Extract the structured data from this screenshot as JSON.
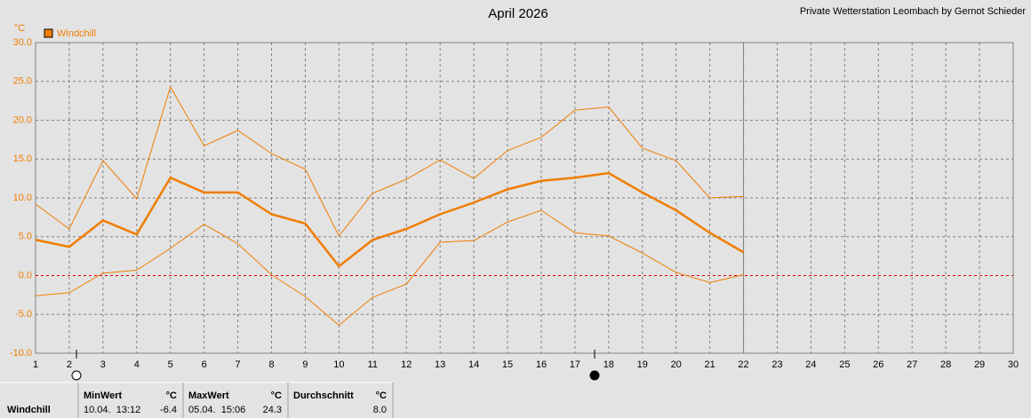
{
  "chart_data": {
    "type": "line",
    "title": "April 2026",
    "subtitle": "Private Wetterstation Leombach by Gernot Schieder",
    "y_label": "°C",
    "x": [
      1,
      2,
      3,
      4,
      5,
      6,
      7,
      8,
      9,
      10,
      11,
      12,
      13,
      14,
      15,
      16,
      17,
      18,
      19,
      20,
      21,
      22
    ],
    "xlim": [
      1,
      30
    ],
    "xticks": [
      1,
      2,
      3,
      4,
      5,
      6,
      7,
      8,
      9,
      10,
      11,
      12,
      13,
      14,
      15,
      16,
      17,
      18,
      19,
      20,
      21,
      22,
      23,
      24,
      25,
      26,
      27,
      28,
      29,
      30
    ],
    "ylim": [
      -10,
      30
    ],
    "yticks": [
      {
        "value": -10,
        "label": "-10.0"
      },
      {
        "value": -5,
        "label": "-5.0"
      },
      {
        "value": 0,
        "label": "0.0"
      },
      {
        "value": 5,
        "label": "5.0"
      },
      {
        "value": 10,
        "label": "10.0"
      },
      {
        "value": 15,
        "label": "15.0"
      },
      {
        "value": 20,
        "label": "20.0"
      },
      {
        "value": 25,
        "label": "25.0"
      },
      {
        "value": 30,
        "label": "30.0"
      }
    ],
    "grid": true,
    "legend": "top-left",
    "series": [
      {
        "name": "Windchill",
        "color": "#f07d00",
        "values": [
          4.6,
          3.7,
          7.1,
          5.3,
          12.6,
          10.7,
          10.7,
          7.9,
          6.7,
          1.2,
          4.6,
          6.0,
          7.9,
          9.4,
          11.1,
          12.2,
          12.6,
          13.2,
          10.7,
          8.4,
          5.5,
          3.0
        ]
      },
      {
        "color": "#f07d00",
        "values": [
          9.2,
          6.0,
          14.8,
          9.9,
          24.3,
          16.7,
          18.7,
          15.7,
          13.7,
          5.1,
          10.6,
          12.4,
          14.9,
          12.5,
          16.1,
          17.8,
          21.3,
          21.7,
          16.4,
          14.8,
          10.0,
          10.2
        ]
      },
      {
        "color": "#f07d00",
        "values": [
          -2.6,
          -2.2,
          0.3,
          0.7,
          3.5,
          6.6,
          4.1,
          0.1,
          -2.7,
          -6.4,
          -2.8,
          -1.1,
          4.3,
          4.5,
          6.9,
          8.4,
          5.5,
          5.1,
          2.9,
          0.4,
          -0.9,
          0.1
        ]
      }
    ]
  },
  "summary": {
    "name": "Windchill",
    "min": {
      "header": "MinWert",
      "unit": "°C",
      "time": "10.04.  13:12",
      "value": "-6.4"
    },
    "max": {
      "header": "MaxWert",
      "unit": "°C",
      "time": "05.04.  15:06",
      "value": "24.3"
    },
    "avg": {
      "header": "Durchschnitt",
      "unit": "°C",
      "value": "8.0"
    }
  }
}
